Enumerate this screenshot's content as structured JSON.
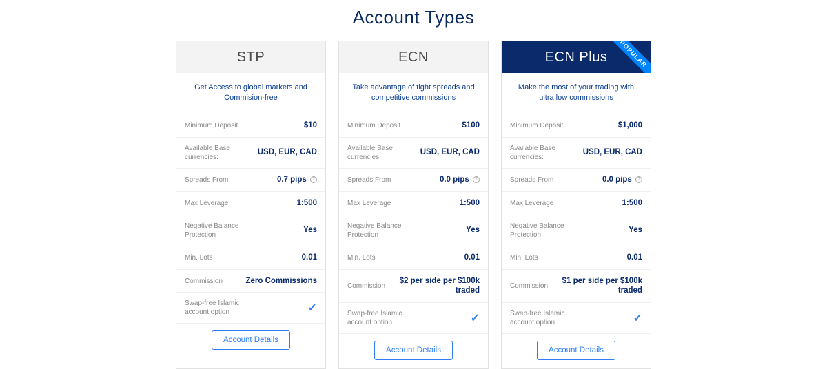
{
  "title": "Account Types",
  "colors": {
    "brand_dark": "#0a2a6b",
    "brand_text": "#0a3d91",
    "accent_blue": "#2f7ef7",
    "ribbon_blue": "#0084ff",
    "header_gray_bg": "#f3f3f3",
    "header_gray_text": "#4a4a4a",
    "label_gray": "#888888",
    "border": "#e1e1e1"
  },
  "common": {
    "button_label": "Account Details",
    "popular_label": "POPULAR",
    "info_glyph": "?",
    "check_glyph": "✓",
    "feature_labels": {
      "min_deposit": "Minimum Deposit",
      "base_currencies": "Available Base currencies:",
      "spreads_from": "Spreads From",
      "max_leverage": "Max Leverage",
      "neg_balance": "Negative Balance Protection",
      "min_lots": "Min. Lots",
      "commission": "Commission",
      "swap_free": "Swap-free Islamic account option"
    }
  },
  "cards": [
    {
      "name": "STP",
      "featured": false,
      "subtitle": "Get Access to global markets and Commision-free",
      "min_deposit": "$10",
      "base_currencies": "USD, EUR, CAD",
      "spreads_from": "0.7 pips",
      "max_leverage": "1:500",
      "neg_balance": "Yes",
      "min_lots": "0.01",
      "commission": "Zero Commissions",
      "swap_free_check": true
    },
    {
      "name": "ECN",
      "featured": false,
      "subtitle": "Take advantage of tight spreads and competitive commissions",
      "min_deposit": "$100",
      "base_currencies": "USD, EUR, CAD",
      "spreads_from": "0.0 pips",
      "max_leverage": "1:500",
      "neg_balance": "Yes",
      "min_lots": "0.01",
      "commission": "$2 per side per $100k traded",
      "swap_free_check": true
    },
    {
      "name": "ECN Plus",
      "featured": true,
      "subtitle": "Make the most of your trading with ultra low commissions",
      "min_deposit": "$1,000",
      "base_currencies": "USD, EUR, CAD",
      "spreads_from": "0.0 pips",
      "max_leverage": "1:500",
      "neg_balance": "Yes",
      "min_lots": "0.01",
      "commission": "$1 per side per $100k traded",
      "swap_free_check": true
    }
  ]
}
